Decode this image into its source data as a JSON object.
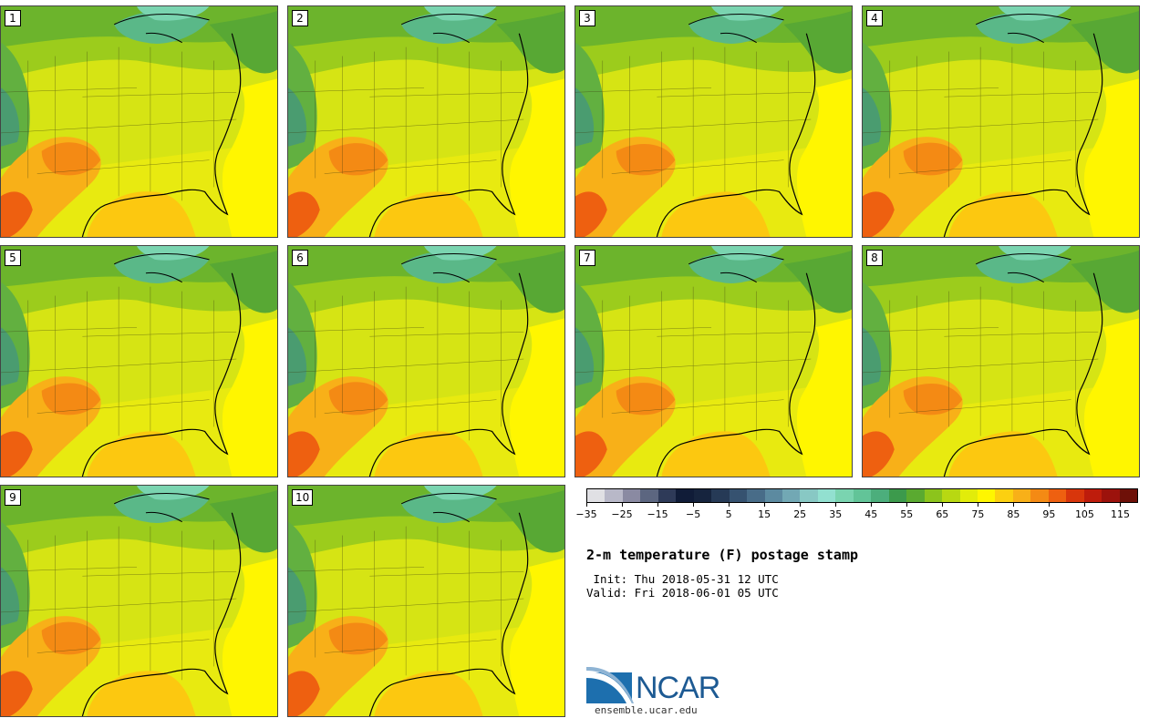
{
  "panels": [
    {
      "label": "1"
    },
    {
      "label": "2"
    },
    {
      "label": "3"
    },
    {
      "label": "4"
    },
    {
      "label": "5"
    },
    {
      "label": "6"
    },
    {
      "label": "7"
    },
    {
      "label": "8"
    },
    {
      "label": "9"
    },
    {
      "label": "10"
    }
  ],
  "colorbar": {
    "colors": [
      "#e0e0e4",
      "#b8b8c8",
      "#8a8aa2",
      "#5c6680",
      "#2e3a58",
      "#101c38",
      "#16243e",
      "#263a56",
      "#365270",
      "#486c88",
      "#5c8aa0",
      "#72a8b4",
      "#88c8c4",
      "#92e0d0",
      "#7ad4b0",
      "#62c498",
      "#4cae7c",
      "#3c9a4c",
      "#5aaa30",
      "#8cc41c",
      "#b8d812",
      "#e2ec0a",
      "#fff600",
      "#fcd010",
      "#f8b018",
      "#f48a14",
      "#ee6010",
      "#d8360c",
      "#be1c0c",
      "#9c120c",
      "#6e1008"
    ],
    "tick_labels": [
      "-35",
      "-25",
      "-15",
      "-5",
      "5",
      "15",
      "25",
      "35",
      "45",
      "55",
      "65",
      "75",
      "85",
      "95",
      "105",
      "115"
    ]
  },
  "title": "2-m temperature (F) postage stamp",
  "init": " Init: Thu 2018-05-31 12 UTC",
  "valid": "Valid: Fri 2018-06-01 05 UTC",
  "logo": {
    "text": "NCAR",
    "url": "ensemble.ucar.edu",
    "color": "#1d5a93"
  }
}
